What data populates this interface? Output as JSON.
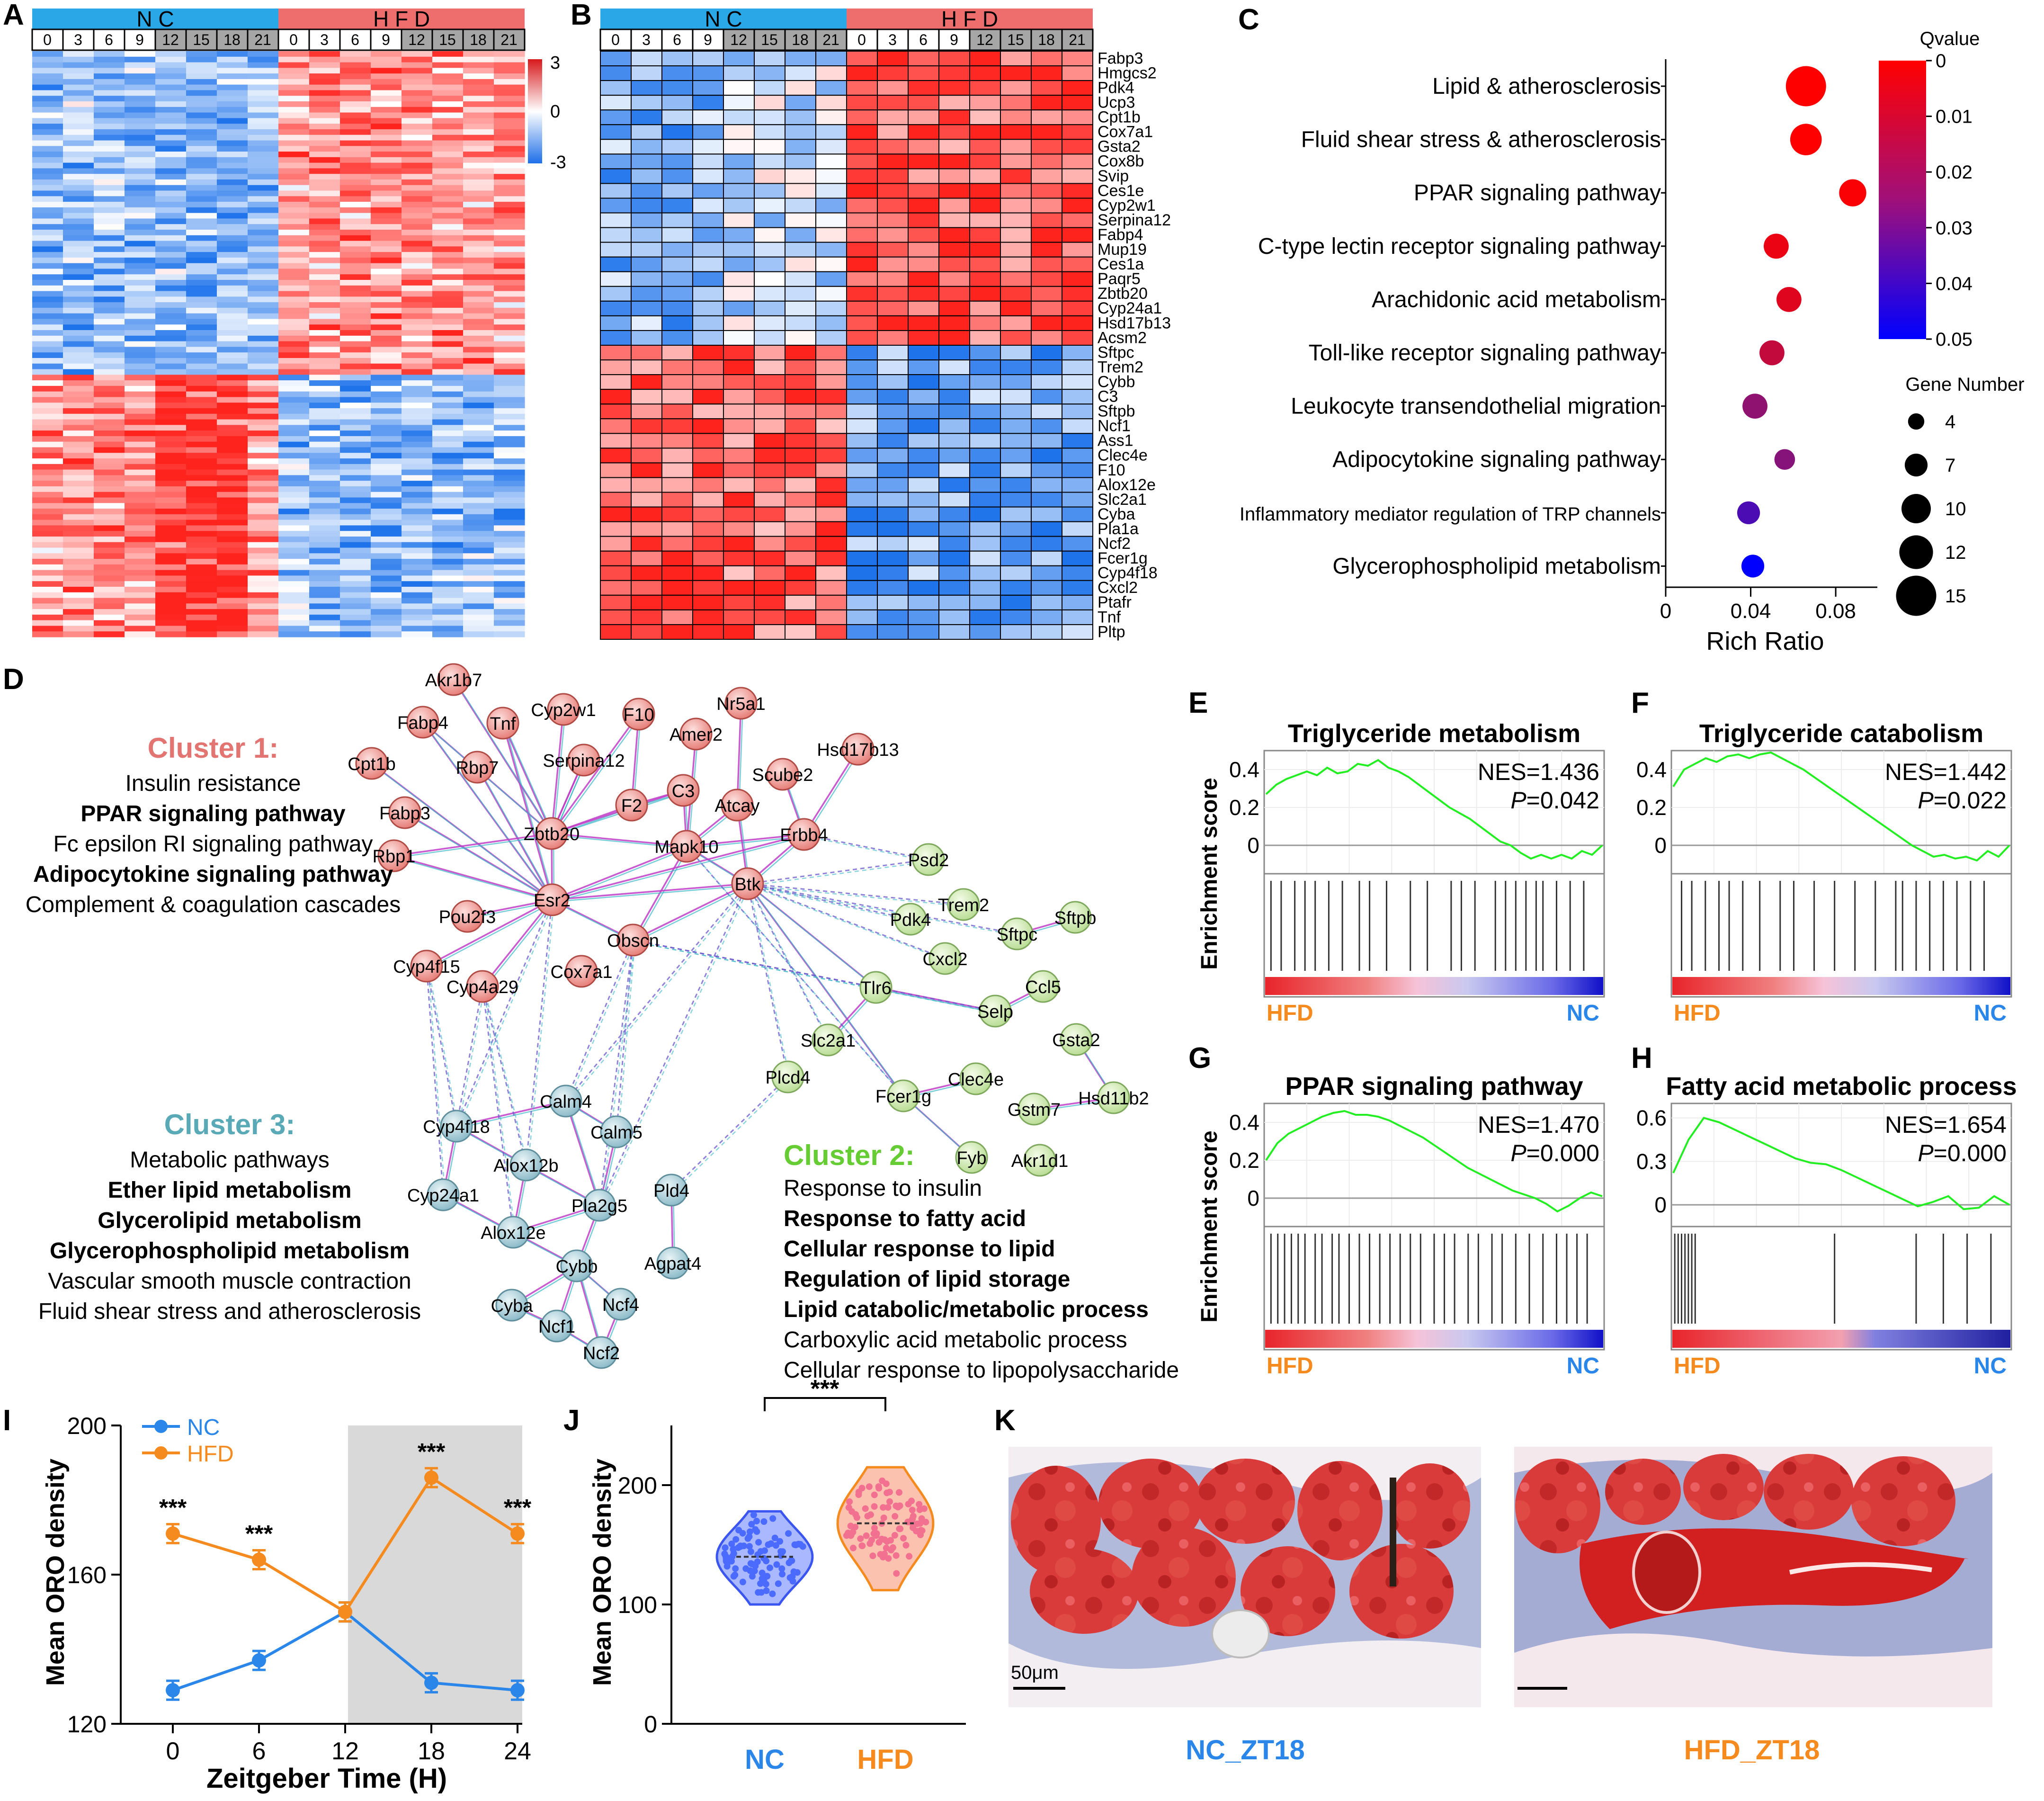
{
  "panel_labels": [
    "A",
    "B",
    "C",
    "D",
    "E",
    "F",
    "G",
    "H",
    "I",
    "J",
    "K"
  ],
  "colors": {
    "nc_blue": "#29a7e6",
    "hfd_red": "#ee6d6d",
    "hfd_orange": "#f58a1f",
    "nc_line": "#2a86e8",
    "green": "#33dd33",
    "grey_band": "#d9d9d9"
  },
  "heatmap_A": {
    "groups": [
      "N C",
      "H F D"
    ],
    "time_labels": [
      "0",
      "3",
      "6",
      "9",
      "12",
      "15",
      "18",
      "21",
      "0",
      "3",
      "6",
      "9",
      "12",
      "15",
      "18",
      "21"
    ],
    "scale_labels": [
      "3",
      "0",
      "-3"
    ]
  },
  "heatmap_B": {
    "groups": [
      "N C",
      "H F D"
    ],
    "time_labels": [
      "0",
      "3",
      "6",
      "9",
      "12",
      "15",
      "18",
      "21",
      "0",
      "3",
      "6",
      "9",
      "12",
      "15",
      "18",
      "21"
    ],
    "genes": [
      "Fabp3",
      "Hmgcs2",
      "Pdk4",
      "Ucp3",
      "Cpt1b",
      "Cox7a1",
      "Gsta2",
      "Cox8b",
      "Svip",
      "Ces1e",
      "Cyp2w1",
      "Serpina12",
      "Fabp4",
      "Mup19",
      "Ces1a",
      "Paqr5",
      "Zbtb20",
      "Cyp24a1",
      "Hsd17b13",
      "Acsm2",
      "Sftpc",
      "Trem2",
      "Cybb",
      "C3",
      "Sftpb",
      "Ncf1",
      "Ass1",
      "Clec4e",
      "F10",
      "Alox12e",
      "Slc2a1",
      "Cyba",
      "Pla1a",
      "Ncf2",
      "Fcer1g",
      "Cyp4f18",
      "Cxcl2",
      "Ptafr",
      "Tnf",
      "Pltp"
    ]
  },
  "chart_data": [
    {
      "panel": "C",
      "type": "scatter",
      "xlabel": "Rich Ratio",
      "xticks": [
        "0",
        "0.04",
        "0.08"
      ],
      "xlim": [
        0,
        0.1
      ],
      "color_legend_title": "Qvalue",
      "color_ticks": [
        "0",
        "0.01",
        "0.02",
        "0.03",
        "0.04",
        "0.05"
      ],
      "size_legend_title": "Gene Number",
      "size_ticks": [
        "4",
        "7",
        "10",
        "12",
        "15"
      ],
      "pathways": [
        {
          "name": "Lipid & atherosclerosis",
          "rich_ratio": 0.066,
          "qvalue": 0.0,
          "genes": 15
        },
        {
          "name": "Fluid shear stress & atherosclerosis",
          "rich_ratio": 0.066,
          "qvalue": 0.0,
          "genes": 11
        },
        {
          "name": "PPAR signaling pathway",
          "rich_ratio": 0.088,
          "qvalue": 0.001,
          "genes": 9
        },
        {
          "name": "C-type lectin receptor signaling pathway",
          "rich_ratio": 0.052,
          "qvalue": 0.004,
          "genes": 8
        },
        {
          "name": "Arachidonic acid metabolism",
          "rich_ratio": 0.058,
          "qvalue": 0.006,
          "genes": 8
        },
        {
          "name": "Toll-like receptor signaling pathway",
          "rich_ratio": 0.05,
          "qvalue": 0.012,
          "genes": 8
        },
        {
          "name": "Leukocyte transendothelial migration",
          "rich_ratio": 0.042,
          "qvalue": 0.022,
          "genes": 8
        },
        {
          "name": "Adipocytokine signaling pathway",
          "rich_ratio": 0.056,
          "qvalue": 0.024,
          "genes": 6
        },
        {
          "name": "Inflammatory mediator regulation of TRP channels",
          "rich_ratio": 0.039,
          "qvalue": 0.035,
          "genes": 7
        },
        {
          "name": "Glycerophospholipid metabolism",
          "rich_ratio": 0.041,
          "qvalue": 0.05,
          "genes": 7
        }
      ]
    },
    {
      "panel": "E",
      "type": "line",
      "title": "Triglyceride metabolism",
      "ylabel": "Enrichment score",
      "yticks": [
        "0.4",
        "0.2",
        "0"
      ],
      "ylim": [
        -0.15,
        0.5
      ],
      "nes": "NES=1.436",
      "p": "=0.042",
      "p_label": "P",
      "left_label": "HFD",
      "right_label": "NC",
      "es": [
        0.27,
        0.32,
        0.35,
        0.37,
        0.39,
        0.37,
        0.41,
        0.38,
        0.39,
        0.43,
        0.42,
        0.45,
        0.41,
        0.39,
        0.36,
        0.32,
        0.28,
        0.24,
        0.2,
        0.17,
        0.14,
        0.1,
        0.06,
        0.02,
        0.0,
        -0.04,
        -0.07,
        -0.05,
        -0.07,
        -0.05,
        -0.07,
        -0.03,
        -0.05,
        0.0
      ]
    },
    {
      "panel": "F",
      "type": "line",
      "title": "Triglyceride catabolism",
      "ylabel": "",
      "yticks": [
        "0.4",
        "0.2",
        "0"
      ],
      "ylim": [
        -0.15,
        0.5
      ],
      "nes": "NES=1.442",
      "p": "=0.022",
      "p_label": "P",
      "left_label": "HFD",
      "right_label": "NC",
      "es": [
        0.31,
        0.4,
        0.43,
        0.46,
        0.44,
        0.47,
        0.48,
        0.46,
        0.48,
        0.49,
        0.46,
        0.43,
        0.4,
        0.36,
        0.32,
        0.28,
        0.24,
        0.2,
        0.16,
        0.12,
        0.08,
        0.04,
        0.0,
        -0.03,
        -0.06,
        -0.05,
        -0.07,
        -0.06,
        -0.08,
        -0.03,
        -0.06,
        0.0
      ]
    },
    {
      "panel": "G",
      "type": "line",
      "title": "PPAR signaling pathway",
      "ylabel": "Enrichment score",
      "yticks": [
        "0.4",
        "0.2",
        "0"
      ],
      "ylim": [
        -0.15,
        0.5
      ],
      "nes": "NES=1.470",
      "p": "=0.000",
      "p_label": "P",
      "left_label": "HFD",
      "right_label": "NC",
      "es": [
        0.2,
        0.29,
        0.34,
        0.37,
        0.4,
        0.43,
        0.45,
        0.46,
        0.44,
        0.44,
        0.43,
        0.41,
        0.38,
        0.35,
        0.32,
        0.28,
        0.24,
        0.2,
        0.16,
        0.13,
        0.1,
        0.07,
        0.04,
        0.02,
        0.0,
        -0.03,
        -0.07,
        -0.04,
        0.0,
        0.03,
        0.01
      ]
    },
    {
      "panel": "H",
      "type": "line",
      "title": "Fatty acid metabolic process",
      "ylabel": "",
      "yticks": [
        "0.6",
        "0.3",
        "0"
      ],
      "ylim": [
        -0.15,
        0.7
      ],
      "nes": "NES=1.654",
      "p": "=0.000",
      "p_label": "P",
      "left_label": "HFD",
      "right_label": "NC",
      "es": [
        0.22,
        0.45,
        0.6,
        0.57,
        0.52,
        0.47,
        0.42,
        0.37,
        0.32,
        0.29,
        0.28,
        0.24,
        0.19,
        0.14,
        0.09,
        0.04,
        -0.01,
        0.02,
        0.06,
        -0.03,
        -0.02,
        0.06,
        0.0
      ]
    },
    {
      "panel": "I",
      "type": "line",
      "xlabel": "Zeitgeber Time (H)",
      "ylabel": "Mean ORO density",
      "x": [
        0,
        6,
        12,
        18,
        24
      ],
      "xticks": [
        "0",
        "6",
        "12",
        "18",
        "24"
      ],
      "yticks": [
        "120",
        "160",
        "200"
      ],
      "ylim": [
        120,
        200
      ],
      "series": [
        {
          "name": "NC",
          "values": [
            129,
            137,
            150,
            131,
            129
          ]
        },
        {
          "name": "HFD",
          "values": [
            171,
            164,
            150,
            186,
            171
          ]
        }
      ],
      "significance": [
        "***",
        "***",
        "",
        "***",
        "***"
      ]
    },
    {
      "panel": "J",
      "type": "scatter",
      "ylabel": "Mean ORO density",
      "categories": [
        "NC",
        "HFD"
      ],
      "yticks": [
        "0",
        "100",
        "200"
      ],
      "ylim": [
        0,
        250
      ],
      "significance": "***",
      "medians": [
        140,
        168
      ]
    }
  ],
  "network_D": {
    "cluster1": {
      "title": "Cluster 1:",
      "terms": [
        "Insulin resistance",
        "PPAR signaling pathway",
        "Fc epsilon RI signaling pathway",
        "Adipocytokine signaling pathway",
        "Complement & coagulation cascades"
      ]
    },
    "cluster2": {
      "title": "Cluster 2:",
      "terms": [
        "Response to insulin",
        "Response to fatty acid",
        "Cellular response to lipid",
        "Regulation of lipid storage",
        "Lipid catabolic/metabolic process",
        "Carboxylic acid metabolic process",
        "Cellular response to lipopolysaccharide"
      ]
    },
    "cluster3": {
      "title": "Cluster 3:",
      "terms": [
        "Metabolic pathways",
        "Ether lipid metabolism",
        "Glycerolipid metabolism",
        "Glycerophospholipid metabolism",
        "Vascular smooth muscle contraction",
        "Fluid shear stress and atherosclerosis"
      ]
    },
    "red_nodes": [
      "Akr1b7",
      "Fabp4",
      "Tnf",
      "Cyp2w1",
      "F10",
      "Nr5a1",
      "Amer2",
      "Hsd17b13",
      "Cpt1b",
      "Rbp7",
      "Serpina12",
      "Scube2",
      "Fabp3",
      "F2",
      "C3",
      "Atcay",
      "Erbb4",
      "Rbp1",
      "Zbtb20",
      "Mapk10",
      "Esr2",
      "Pou2f3",
      "Btk",
      "Obscn",
      "Cyp4f15",
      "Cyp4a29",
      "Cox7a1"
    ],
    "green_nodes": [
      "Psd2",
      "Trem2",
      "Pdk4",
      "Sftpb",
      "Sftpc",
      "Cxcl2",
      "Ccl5",
      "Tlr6",
      "Selp",
      "Slc2a1",
      "Plcd4",
      "Clec4e",
      "Gsta2",
      "Hsd11b2",
      "Fcer1g",
      "Gstm7",
      "Fyb",
      "Akr1d1"
    ],
    "blue_nodes": [
      "Calm4",
      "Cyp4f18",
      "Calm5",
      "Alox12b",
      "Cyp24a1",
      "Pla2g5",
      "Pld4",
      "Alox12e",
      "Agpat4",
      "Cybb",
      "Cyba",
      "Ncf4",
      "Ncf1",
      "Ncf2"
    ]
  },
  "panel_K": {
    "scale_bar": "50μm",
    "left_caption": "NC_ZT18",
    "right_caption": "HFD_ZT18"
  }
}
